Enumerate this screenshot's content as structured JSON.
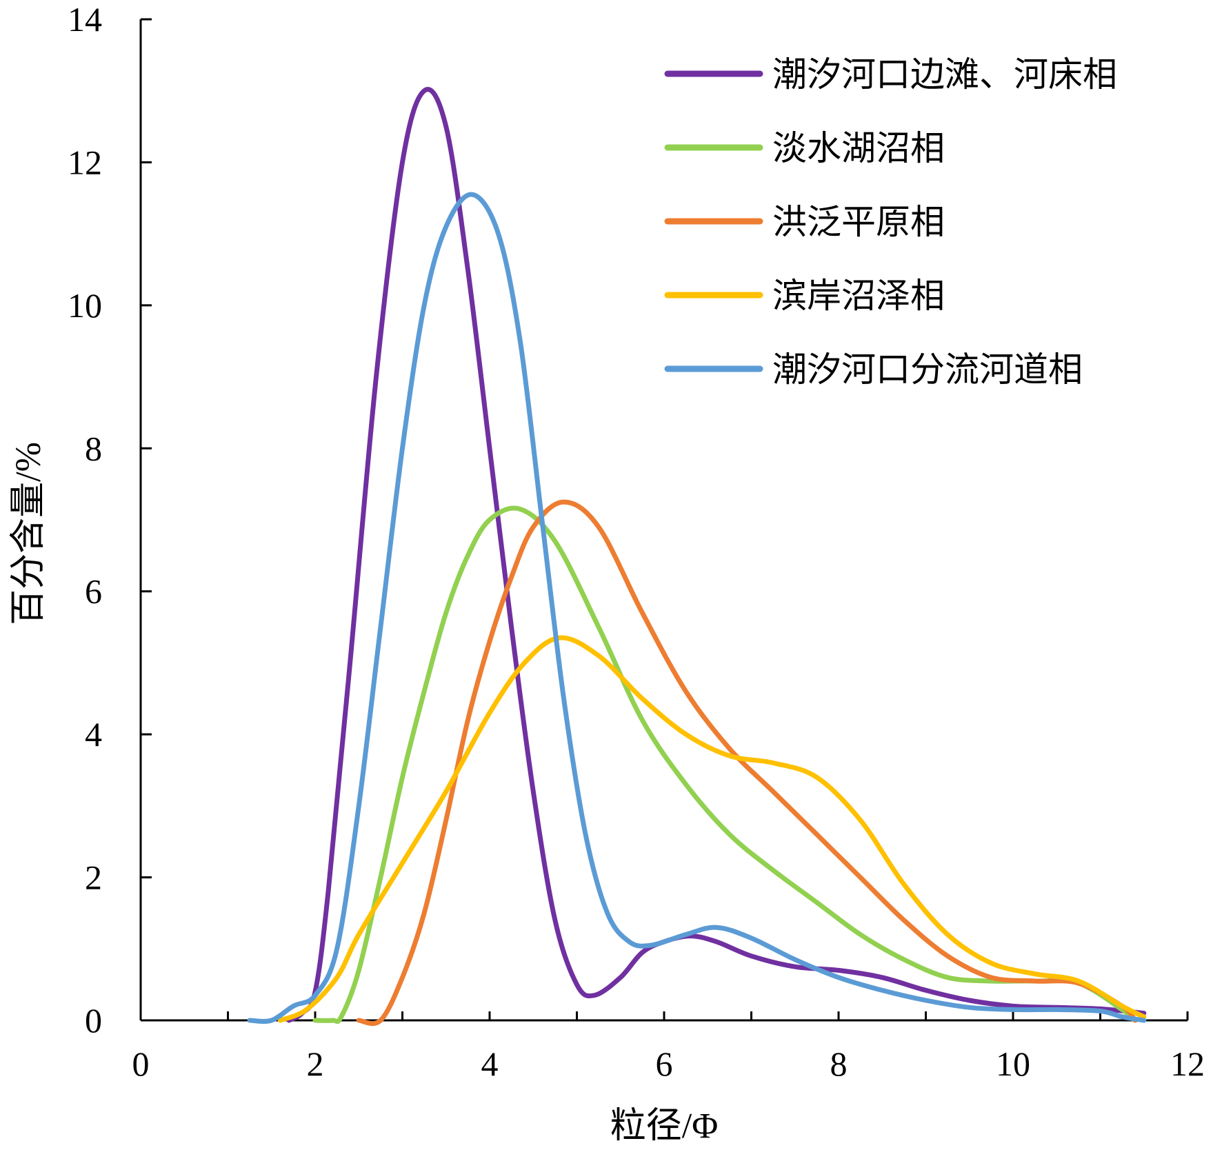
{
  "chart_data": {
    "type": "line",
    "xlabel": "粒径/Φ",
    "ylabel": "百分含量/%",
    "xlim": [
      0,
      12
    ],
    "ylim": [
      0,
      14
    ],
    "xticks": [
      0,
      2,
      4,
      6,
      8,
      10,
      12
    ],
    "yticks": [
      0,
      2,
      4,
      6,
      8,
      10,
      12,
      14
    ],
    "grid": false,
    "legend_position": "top-right",
    "series": [
      {
        "name": "潮汐河口边滩、河床相",
        "color": "#7030A0",
        "points": [
          [
            1.7,
            0
          ],
          [
            1.85,
            0.1
          ],
          [
            2.0,
            0.4
          ],
          [
            2.15,
            1.8
          ],
          [
            2.4,
            5.0
          ],
          [
            2.7,
            9.0
          ],
          [
            3.0,
            12.0
          ],
          [
            3.25,
            13.0
          ],
          [
            3.5,
            12.5
          ],
          [
            3.75,
            10.5
          ],
          [
            4.0,
            8.0
          ],
          [
            4.25,
            5.5
          ],
          [
            4.5,
            3.2
          ],
          [
            4.75,
            1.4
          ],
          [
            5.0,
            0.5
          ],
          [
            5.2,
            0.35
          ],
          [
            5.5,
            0.6
          ],
          [
            5.75,
            0.95
          ],
          [
            6.0,
            1.1
          ],
          [
            6.3,
            1.18
          ],
          [
            6.6,
            1.1
          ],
          [
            7.0,
            0.9
          ],
          [
            7.5,
            0.75
          ],
          [
            8.0,
            0.7
          ],
          [
            8.5,
            0.6
          ],
          [
            9.0,
            0.42
          ],
          [
            9.5,
            0.28
          ],
          [
            10.0,
            0.2
          ],
          [
            10.5,
            0.18
          ],
          [
            11.0,
            0.16
          ],
          [
            11.5,
            0.1
          ]
        ]
      },
      {
        "name": "淡水湖沼相",
        "color": "#92D050",
        "points": [
          [
            2.0,
            0
          ],
          [
            2.2,
            0
          ],
          [
            2.3,
            0.05
          ],
          [
            2.5,
            0.7
          ],
          [
            2.75,
            2.0
          ],
          [
            3.0,
            3.4
          ],
          [
            3.25,
            4.6
          ],
          [
            3.5,
            5.7
          ],
          [
            3.75,
            6.5
          ],
          [
            4.0,
            7.0
          ],
          [
            4.35,
            7.15
          ],
          [
            4.75,
            6.7
          ],
          [
            5.25,
            5.5
          ],
          [
            5.75,
            4.2
          ],
          [
            6.25,
            3.3
          ],
          [
            6.75,
            2.6
          ],
          [
            7.25,
            2.1
          ],
          [
            7.75,
            1.65
          ],
          [
            8.25,
            1.2
          ],
          [
            8.75,
            0.85
          ],
          [
            9.25,
            0.6
          ],
          [
            9.75,
            0.55
          ],
          [
            10.25,
            0.55
          ],
          [
            10.75,
            0.52
          ],
          [
            11.25,
            0.15
          ],
          [
            11.4,
            0
          ]
        ]
      },
      {
        "name": "洪泛平原相",
        "color": "#ED7D31",
        "points": [
          [
            2.5,
            0
          ],
          [
            2.75,
            0
          ],
          [
            3.0,
            0.6
          ],
          [
            3.25,
            1.5
          ],
          [
            3.5,
            2.8
          ],
          [
            3.75,
            4.2
          ],
          [
            4.0,
            5.3
          ],
          [
            4.25,
            6.2
          ],
          [
            4.5,
            6.9
          ],
          [
            4.85,
            7.25
          ],
          [
            5.25,
            6.9
          ],
          [
            5.75,
            5.7
          ],
          [
            6.25,
            4.6
          ],
          [
            6.75,
            3.8
          ],
          [
            7.25,
            3.2
          ],
          [
            7.75,
            2.6
          ],
          [
            8.25,
            2.0
          ],
          [
            8.75,
            1.4
          ],
          [
            9.25,
            0.9
          ],
          [
            9.75,
            0.6
          ],
          [
            10.25,
            0.55
          ],
          [
            10.75,
            0.52
          ],
          [
            11.25,
            0.2
          ],
          [
            11.4,
            0
          ]
        ]
      },
      {
        "name": "滨岸沼泽相",
        "color": "#FFC000",
        "points": [
          [
            1.6,
            0
          ],
          [
            1.9,
            0.15
          ],
          [
            2.25,
            0.6
          ],
          [
            2.5,
            1.2
          ],
          [
            3.0,
            2.2
          ],
          [
            3.5,
            3.2
          ],
          [
            4.0,
            4.3
          ],
          [
            4.4,
            5.0
          ],
          [
            4.8,
            5.35
          ],
          [
            5.25,
            5.1
          ],
          [
            5.75,
            4.5
          ],
          [
            6.25,
            4.0
          ],
          [
            6.75,
            3.7
          ],
          [
            7.25,
            3.6
          ],
          [
            7.75,
            3.4
          ],
          [
            8.25,
            2.8
          ],
          [
            8.75,
            1.9
          ],
          [
            9.25,
            1.2
          ],
          [
            9.75,
            0.8
          ],
          [
            10.25,
            0.65
          ],
          [
            10.75,
            0.55
          ],
          [
            11.25,
            0.2
          ],
          [
            11.5,
            0.05
          ]
        ]
      },
      {
        "name": "潮汐河口分流河道相",
        "color": "#5B9BD5",
        "points": [
          [
            1.25,
            0
          ],
          [
            1.5,
            0
          ],
          [
            1.75,
            0.2
          ],
          [
            2.0,
            0.35
          ],
          [
            2.25,
            1.0
          ],
          [
            2.5,
            3.0
          ],
          [
            2.75,
            5.5
          ],
          [
            3.0,
            8.0
          ],
          [
            3.25,
            10.0
          ],
          [
            3.5,
            11.1
          ],
          [
            3.8,
            11.55
          ],
          [
            4.1,
            11.0
          ],
          [
            4.35,
            9.5
          ],
          [
            4.6,
            7.0
          ],
          [
            4.85,
            4.5
          ],
          [
            5.1,
            2.6
          ],
          [
            5.35,
            1.5
          ],
          [
            5.6,
            1.1
          ],
          [
            5.85,
            1.05
          ],
          [
            6.25,
            1.2
          ],
          [
            6.6,
            1.3
          ],
          [
            7.0,
            1.15
          ],
          [
            7.5,
            0.85
          ],
          [
            8.0,
            0.6
          ],
          [
            8.5,
            0.42
          ],
          [
            9.0,
            0.28
          ],
          [
            9.5,
            0.18
          ],
          [
            10.0,
            0.15
          ],
          [
            10.5,
            0.15
          ],
          [
            11.0,
            0.13
          ],
          [
            11.25,
            0.05
          ],
          [
            11.5,
            0
          ]
        ]
      }
    ]
  }
}
